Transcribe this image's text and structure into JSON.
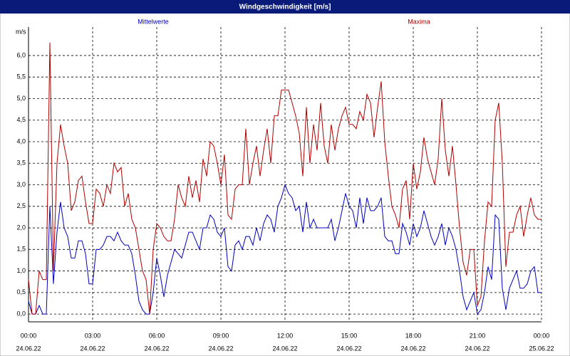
{
  "chart_data": {
    "type": "line",
    "title": "Windgeschwindigkeit [m/s]",
    "ylabel": "m/s",
    "xlim": [
      0,
      1440
    ],
    "ylim": [
      -0.18,
      6.66
    ],
    "grid": true,
    "xticks": [
      {
        "value": 0,
        "label": "00:00"
      },
      {
        "value": 180,
        "label": "03:00"
      },
      {
        "value": 360,
        "label": "06:00"
      },
      {
        "value": 540,
        "label": "09:00"
      },
      {
        "value": 720,
        "label": "12:00"
      },
      {
        "value": 900,
        "label": "15:00"
      },
      {
        "value": 1080,
        "label": "18:00"
      },
      {
        "value": 1260,
        "label": "21:00"
      },
      {
        "value": 1440,
        "label": "00:00"
      }
    ],
    "xtick_dates": [
      "24.06.22",
      "24.06.22",
      "24.06.22",
      "24.06.22",
      "24.06.22",
      "24.06.22",
      "24.06.22",
      "24.06.22",
      "25.06.22"
    ],
    "yticks": [
      {
        "value": 0,
        "label": "0,0"
      },
      {
        "value": 0.5,
        "label": "0,5"
      },
      {
        "value": 1,
        "label": "1,0"
      },
      {
        "value": 1.5,
        "label": "1,5"
      },
      {
        "value": 2,
        "label": "2,0"
      },
      {
        "value": 2.5,
        "label": "2,5"
      },
      {
        "value": 3,
        "label": "3,0"
      },
      {
        "value": 3.5,
        "label": "3,5"
      },
      {
        "value": 4,
        "label": "4,0"
      },
      {
        "value": 4.5,
        "label": "4,5"
      },
      {
        "value": 5,
        "label": "5,0"
      },
      {
        "value": 5.5,
        "label": "5,5"
      },
      {
        "value": 6,
        "label": "6,0"
      }
    ],
    "x": [
      0,
      10,
      20,
      30,
      40,
      50,
      60,
      70,
      80,
      90,
      100,
      110,
      120,
      130,
      140,
      150,
      160,
      170,
      180,
      190,
      200,
      210,
      220,
      230,
      240,
      250,
      260,
      270,
      280,
      290,
      300,
      310,
      320,
      330,
      340,
      350,
      360,
      370,
      380,
      390,
      400,
      410,
      420,
      430,
      440,
      450,
      460,
      470,
      480,
      490,
      500,
      510,
      520,
      530,
      540,
      550,
      560,
      570,
      580,
      590,
      600,
      610,
      620,
      630,
      640,
      650,
      660,
      670,
      680,
      690,
      700,
      710,
      720,
      730,
      740,
      750,
      760,
      770,
      780,
      790,
      800,
      810,
      820,
      830,
      840,
      850,
      860,
      870,
      880,
      890,
      900,
      910,
      920,
      930,
      940,
      950,
      960,
      970,
      980,
      990,
      1000,
      1010,
      1020,
      1030,
      1040,
      1050,
      1060,
      1070,
      1080,
      1090,
      1100,
      1110,
      1120,
      1130,
      1140,
      1150,
      1160,
      1170,
      1180,
      1190,
      1200,
      1210,
      1220,
      1230,
      1240,
      1250,
      1260,
      1270,
      1280,
      1290,
      1300,
      1310,
      1320,
      1330,
      1340,
      1350,
      1360,
      1370,
      1380,
      1390,
      1400,
      1410,
      1420,
      1430,
      1440
    ],
    "series": [
      {
        "name": "Mittelwerte",
        "color": "#0000c0",
        "values": [
          0.3,
          0,
          0,
          0.2,
          0,
          0,
          2.5,
          0.7,
          1.9,
          2.6,
          2.0,
          1.8,
          1.3,
          1.3,
          1.7,
          1.7,
          1.4,
          0.7,
          0.7,
          1.5,
          1.5,
          1.6,
          1.8,
          1.8,
          1.7,
          1.9,
          1.7,
          1.6,
          1.6,
          1.4,
          0.9,
          0.3,
          0.1,
          0,
          0,
          0.5,
          1.3,
          0.9,
          0.4,
          0.9,
          1.2,
          1.5,
          1.4,
          1.3,
          1.6,
          1.9,
          1.9,
          1.7,
          1.5,
          2.0,
          2.0,
          2.3,
          2.2,
          1.9,
          1.8,
          2.0,
          1.1,
          1.0,
          1.6,
          1.7,
          1.5,
          1.8,
          1.8,
          1.6,
          2.0,
          1.7,
          2.1,
          2.3,
          2.2,
          1.9,
          2.5,
          2.7,
          3.0,
          2.8,
          2.7,
          2.4,
          2.5,
          1.9,
          2.6,
          2.0,
          2.2,
          2.0,
          2.0,
          2.0,
          2.0,
          2.2,
          1.7,
          2.0,
          2.4,
          2.8,
          2.5,
          2.4,
          2.0,
          2.7,
          2.1,
          2.7,
          2.4,
          2.4,
          2.5,
          2.7,
          1.8,
          1.7,
          1.7,
          1.4,
          1.4,
          2.1,
          1.9,
          1.6,
          2.1,
          1.8,
          2.0,
          2.4,
          2.1,
          1.8,
          1.6,
          1.8,
          2.1,
          1.6,
          2.0,
          1.8,
          1.5,
          1.0,
          0.4,
          0.1,
          0.3,
          0.5,
          0,
          0.1,
          0.5,
          1.1,
          0.8,
          2.3,
          2.2,
          0.6,
          0.1,
          0.6,
          0.8,
          1.0,
          0.6,
          0.6,
          0.7,
          1.0,
          1.1,
          0.5,
          0.5
        ]
      },
      {
        "name": "Maxima",
        "color": "#b00000",
        "values": [
          0.8,
          0,
          0,
          1.0,
          0.8,
          0.8,
          6.3,
          1.0,
          3.5,
          4.4,
          3.9,
          3.5,
          2.4,
          2.6,
          3.1,
          3.2,
          2.6,
          2.1,
          2.1,
          2.9,
          2.8,
          2.5,
          3.0,
          2.8,
          3.5,
          3.3,
          3.4,
          2.5,
          2.8,
          2.2,
          2.0,
          1.5,
          1.0,
          0.8,
          0,
          1.5,
          2.1,
          2.0,
          1.8,
          1.7,
          1.7,
          2.2,
          3.0,
          2.7,
          2.5,
          3.2,
          2.7,
          3.1,
          2.6,
          3.6,
          3.2,
          4.0,
          3.9,
          3.5,
          3.0,
          3.7,
          2.3,
          2.2,
          2.9,
          3.0,
          3.0,
          4.3,
          3.0,
          3.5,
          3.9,
          3.2,
          3.8,
          4.3,
          3.5,
          4.6,
          4.6,
          5.2,
          5.2,
          5.2,
          4.9,
          4.6,
          4.2,
          3.2,
          4.8,
          3.5,
          4.4,
          3.8,
          4.9,
          3.9,
          3.5,
          4.4,
          3.8,
          4.3,
          4.6,
          4.8,
          4.4,
          4.4,
          4.3,
          4.7,
          4.5,
          5.1,
          4.9,
          4.1,
          4.8,
          5.4,
          4.0,
          3.2,
          2.5,
          2.3,
          2.0,
          2.9,
          3.1,
          2.2,
          3.5,
          2.9,
          3.3,
          4.1,
          3.6,
          3.3,
          3.0,
          3.6,
          5.0,
          3.8,
          3.2,
          3.9,
          3.0,
          2.0,
          1.2,
          0.9,
          1.5,
          1.5,
          0.2,
          0.4,
          1.7,
          2.6,
          2.5,
          4.5,
          4.9,
          3.5,
          1.1,
          1.9,
          1.9,
          2.3,
          2.5,
          1.8,
          2.3,
          2.7,
          2.3,
          2.2,
          2.2
        ]
      }
    ]
  }
}
